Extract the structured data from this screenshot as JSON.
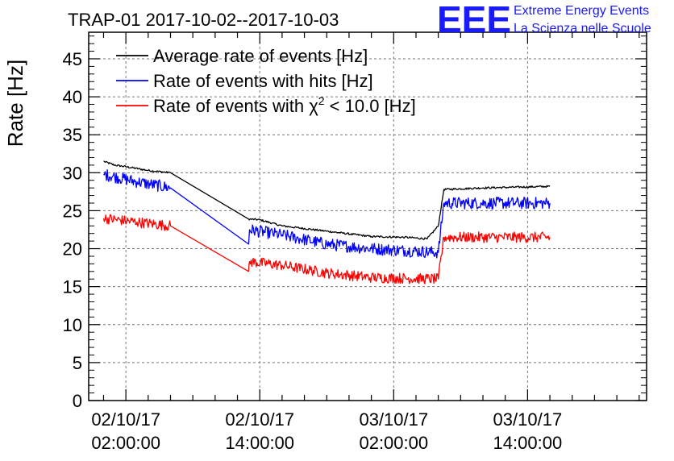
{
  "chart_data": {
    "type": "line",
    "title": "TRAP-01 2017-10-02--2017-10-03",
    "ylabel": "Rate [Hz]",
    "xlabel": "",
    "ylim": [
      0,
      48.5
    ],
    "xlim": [
      "2017-10-01T22:40:00",
      "2017-10-04T00:40:00"
    ],
    "yticks": [
      0,
      5,
      10,
      15,
      20,
      25,
      30,
      35,
      40,
      45
    ],
    "xticks": [
      {
        "t": "2017-10-02T02:00:00",
        "date": "02/10/17",
        "time": "02:00:00"
      },
      {
        "t": "2017-10-02T14:00:00",
        "date": "02/10/17",
        "time": "14:00:00"
      },
      {
        "t": "2017-10-03T02:00:00",
        "date": "03/10/17",
        "time": "02:00:00"
      },
      {
        "t": "2017-10-03T14:00:00",
        "date": "03/10/17",
        "time": "14:00:00"
      }
    ],
    "grid": true,
    "legend_position": "top-left",
    "series": [
      {
        "name": "Average rate of events [Hz]",
        "color": "#000000",
        "noise": 0.25,
        "points": [
          [
            "2017-10-02T00:00:00",
            31.5
          ],
          [
            "2017-10-02T01:00:00",
            31.0
          ],
          [
            "2017-10-02T02:00:00",
            30.8
          ],
          [
            "2017-10-02T04:00:00",
            30.3
          ],
          [
            "2017-10-02T06:00:00",
            30.0
          ],
          [
            "2017-10-02T13:00:00",
            23.9
          ],
          [
            "2017-10-02T14:00:00",
            23.8
          ],
          [
            "2017-10-02T16:00:00",
            23.0
          ],
          [
            "2017-10-02T20:00:00",
            22.3
          ],
          [
            "2017-10-03T00:00:00",
            21.6
          ],
          [
            "2017-10-03T03:00:00",
            21.5
          ],
          [
            "2017-10-03T05:00:00",
            21.3
          ],
          [
            "2017-10-03T06:00:00",
            23.0
          ],
          [
            "2017-10-03T06:30:00",
            27.8
          ],
          [
            "2017-10-03T10:00:00",
            28.0
          ],
          [
            "2017-10-03T16:00:00",
            28.2
          ]
        ]
      },
      {
        "name": "Rate of events with hits [Hz]",
        "color": "#0000ff",
        "noise": 1.6,
        "points": [
          [
            "2017-10-02T00:00:00",
            29.8
          ],
          [
            "2017-10-02T03:00:00",
            28.8
          ],
          [
            "2017-10-02T06:00:00",
            28.0
          ],
          [
            "2017-10-02T13:00:00",
            20.6
          ],
          [
            "2017-10-02T13:05:00",
            22.5
          ],
          [
            "2017-10-02T16:00:00",
            21.8
          ],
          [
            "2017-10-02T20:00:00",
            20.6
          ],
          [
            "2017-10-03T00:00:00",
            20.0
          ],
          [
            "2017-10-03T06:00:00",
            19.5
          ],
          [
            "2017-10-03T06:30:00",
            26.0
          ],
          [
            "2017-10-03T16:00:00",
            26.0
          ]
        ]
      },
      {
        "name": "Rate of events with χ² < 10.0 [Hz]",
        "legend_main": "Rate of events with χ",
        "legend_sup": "2",
        "legend_tail": " < 10.0 [Hz]",
        "color": "#ff0000",
        "noise": 1.4,
        "points": [
          [
            "2017-10-02T00:00:00",
            24.0
          ],
          [
            "2017-10-02T03:00:00",
            23.5
          ],
          [
            "2017-10-02T06:00:00",
            23.0
          ],
          [
            "2017-10-02T13:00:00",
            17.0
          ],
          [
            "2017-10-02T13:05:00",
            18.3
          ],
          [
            "2017-10-02T16:00:00",
            17.8
          ],
          [
            "2017-10-02T20:00:00",
            16.8
          ],
          [
            "2017-10-03T00:00:00",
            16.2
          ],
          [
            "2017-10-03T06:00:00",
            16.0
          ],
          [
            "2017-10-03T06:30:00",
            21.5
          ],
          [
            "2017-10-03T16:00:00",
            21.5
          ]
        ]
      }
    ]
  },
  "logo": {
    "mark": "EEE",
    "line1": "Extreme Energy Events",
    "line2": "La Scienza nelle Scuole"
  }
}
